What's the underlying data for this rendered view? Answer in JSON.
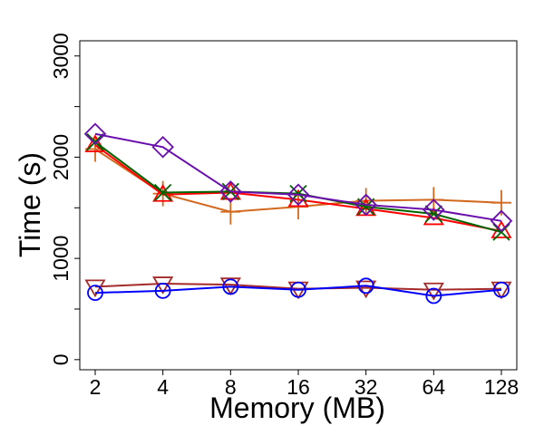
{
  "chart_data": {
    "type": "line",
    "title": "",
    "xlabel": "Memory (MB)",
    "ylabel": "Time (s)",
    "categories": [
      "2",
      "4",
      "8",
      "16",
      "32",
      "64",
      "128"
    ],
    "ylim": [
      -100,
      3150
    ],
    "yticks": [
      0,
      500,
      1000,
      1500,
      2000,
      2500,
      3000
    ],
    "ytick_labels": [
      "0",
      "",
      "1000",
      "",
      "2000",
      "",
      "3000"
    ],
    "grid": false,
    "legend": "none",
    "series": [
      {
        "name": "series-orange-plus",
        "color": "#d2691e",
        "marker": "plus",
        "values": [
          2080,
          1640,
          1460,
          1510,
          1570,
          1580,
          1550
        ]
      },
      {
        "name": "series-red-triangle",
        "color": "#ff0000",
        "marker": "triangle-up",
        "values": [
          2120,
          1630,
          1650,
          1580,
          1490,
          1400,
          1270
        ]
      },
      {
        "name": "series-green-x",
        "color": "#006400",
        "marker": "x",
        "values": [
          2150,
          1650,
          1660,
          1640,
          1510,
          1440,
          1260
        ]
      },
      {
        "name": "series-purple-diamond",
        "color": "#6a0dad",
        "marker": "diamond",
        "values": [
          2230,
          2100,
          1660,
          1630,
          1530,
          1480,
          1370
        ]
      },
      {
        "name": "series-brown-triangle-down",
        "color": "#a52a2a",
        "marker": "triangle-down",
        "values": [
          720,
          750,
          740,
          700,
          710,
          690,
          700
        ]
      },
      {
        "name": "series-blue-circle",
        "color": "#0000ff",
        "marker": "circle",
        "values": [
          660,
          680,
          720,
          690,
          730,
          630,
          690
        ]
      }
    ]
  }
}
